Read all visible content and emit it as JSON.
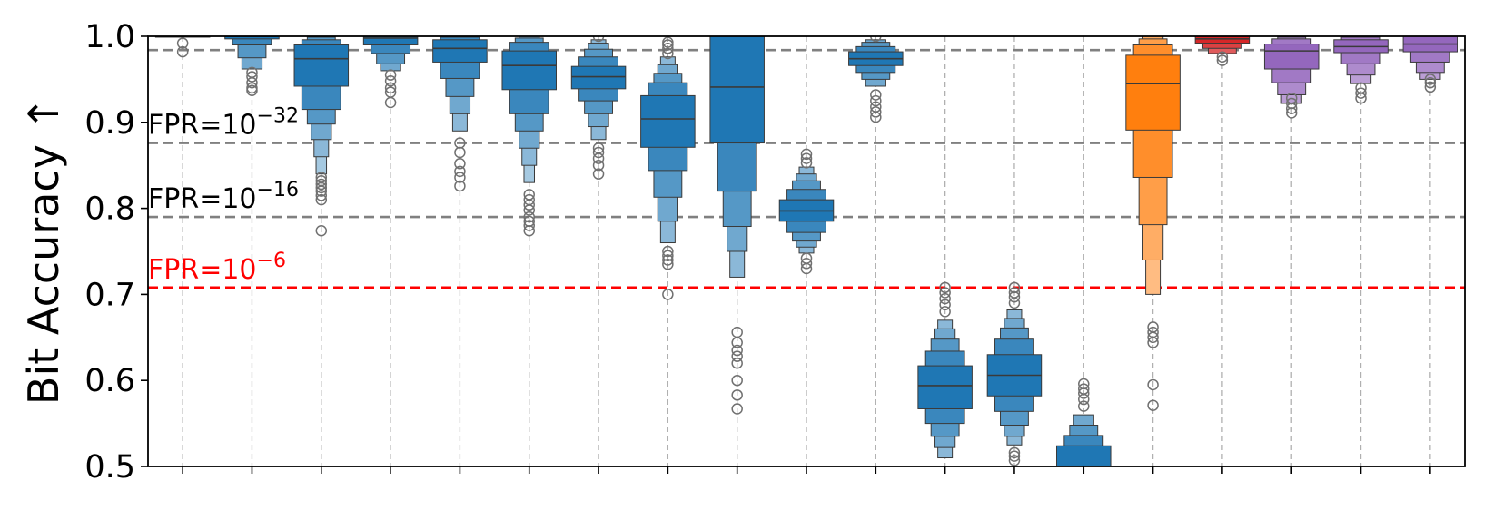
{
  "chart_data": {
    "type": "boxen",
    "xlabel": "",
    "ylabel": "Bit Accuracy ↑",
    "ylim": [
      0.5,
      1.0
    ],
    "yticks": [
      "0.5",
      "0.6",
      "0.7",
      "0.8",
      "0.9",
      "1.0"
    ],
    "grid": "dashed vertical lines at each category",
    "reference_lines": [
      {
        "label_base": "FPR=10",
        "exponent": "−32",
        "y": 0.984,
        "color": "#808080",
        "show_label": false
      },
      {
        "label_base": "FPR=10",
        "exponent": "−32",
        "y": 0.876,
        "color": "#808080",
        "show_label": true
      },
      {
        "label_base": "FPR=10",
        "exponent": "−16",
        "y": 0.79,
        "color": "#808080",
        "show_label": true
      },
      {
        "label_base": "FPR=10",
        "exponent": "−6",
        "y": 0.708,
        "color": "#ff0000",
        "show_label": true
      }
    ],
    "distributions": [
      {
        "index": 0,
        "median": 1.0,
        "color": "#1f77b4",
        "levels": [
          [
            1.0,
            1.0
          ]
        ],
        "outliers": [
          0.992,
          0.982
        ]
      },
      {
        "index": 1,
        "median": 1.0,
        "color": "#1f77b4",
        "levels": [
          [
            0.997,
            1.0
          ],
          [
            0.99,
            1.0
          ],
          [
            0.975,
            1.0
          ],
          [
            0.962,
            1.0
          ]
        ],
        "outliers": [
          0.958,
          0.953,
          0.946,
          0.94,
          0.937
        ]
      },
      {
        "index": 2,
        "median": 0.974,
        "color": "#1f77b4",
        "levels": [
          [
            0.942,
            0.99
          ],
          [
            0.915,
            0.996
          ],
          [
            0.898,
            0.999
          ],
          [
            0.88,
            1.0
          ],
          [
            0.86,
            1.0
          ],
          [
            0.84,
            1.0
          ]
        ],
        "outliers": [
          0.836,
          0.832,
          0.828,
          0.824,
          0.82,
          0.815,
          0.81,
          0.774
        ]
      },
      {
        "index": 3,
        "median": 0.998,
        "color": "#1f77b4",
        "levels": [
          [
            0.99,
            1.0
          ],
          [
            0.98,
            1.0
          ],
          [
            0.968,
            1.0
          ],
          [
            0.96,
            1.0
          ]
        ],
        "outliers": [
          0.955,
          0.948,
          0.94,
          0.935,
          0.923
        ]
      },
      {
        "index": 4,
        "median": 0.986,
        "color": "#1f77b4",
        "levels": [
          [
            0.97,
            0.996
          ],
          [
            0.951,
            0.999
          ],
          [
            0.93,
            1.0
          ],
          [
            0.91,
            1.0
          ],
          [
            0.89,
            1.0
          ]
        ],
        "outliers": [
          0.876,
          0.865,
          0.852,
          0.843,
          0.836,
          0.826
        ]
      },
      {
        "index": 5,
        "median": 0.966,
        "color": "#1f77b4",
        "levels": [
          [
            0.938,
            0.983
          ],
          [
            0.91,
            0.993
          ],
          [
            0.89,
            0.998
          ],
          [
            0.87,
            1.0
          ],
          [
            0.85,
            1.0
          ],
          [
            0.83,
            1.0
          ]
        ],
        "outliers": [
          0.816,
          0.81,
          0.804,
          0.798,
          0.79,
          0.785,
          0.78,
          0.774
        ]
      },
      {
        "index": 6,
        "median": 0.953,
        "color": "#1f77b4",
        "levels": [
          [
            0.939,
            0.965
          ],
          [
            0.925,
            0.976
          ],
          [
            0.91,
            0.985
          ],
          [
            0.895,
            0.992
          ],
          [
            0.88,
            0.996
          ]
        ],
        "outliers": [
          0.87,
          0.865,
          0.858,
          0.85,
          0.84,
          1.0
        ]
      },
      {
        "index": 7,
        "median": 0.904,
        "color": "#1f77b4",
        "levels": [
          [
            0.871,
            0.931
          ],
          [
            0.844,
            0.946
          ],
          [
            0.813,
            0.957
          ],
          [
            0.785,
            0.967
          ],
          [
            0.76,
            0.976
          ]
        ],
        "outliers": [
          0.75,
          0.745,
          0.74,
          0.735,
          0.7,
          0.98,
          0.986,
          0.99,
          0.993
        ]
      },
      {
        "index": 8,
        "median": 0.941,
        "color": "#1f77b4",
        "levels": [
          [
            0.876,
            1.0
          ],
          [
            0.82,
            1.0
          ],
          [
            0.779,
            1.0
          ],
          [
            0.75,
            1.0
          ],
          [
            0.72,
            1.0
          ]
        ],
        "outliers": [
          0.656,
          0.644,
          0.635,
          0.628,
          0.62,
          0.6,
          0.583,
          0.567
        ]
      },
      {
        "index": 9,
        "median": 0.797,
        "color": "#1f77b4",
        "levels": [
          [
            0.785,
            0.81
          ],
          [
            0.772,
            0.822
          ],
          [
            0.762,
            0.832
          ],
          [
            0.755,
            0.84
          ],
          [
            0.748,
            0.848
          ]
        ],
        "outliers": [
          0.742,
          0.736,
          0.73,
          0.853,
          0.858,
          0.863
        ]
      },
      {
        "index": 10,
        "median": 0.974,
        "color": "#1f77b4",
        "levels": [
          [
            0.966,
            0.982
          ],
          [
            0.958,
            0.988
          ],
          [
            0.95,
            0.993
          ],
          [
            0.942,
            0.996
          ]
        ],
        "outliers": [
          0.932,
          0.925,
          0.918,
          0.912,
          0.906,
          1.0
        ]
      },
      {
        "index": 11,
        "median": 0.594,
        "color": "#1f77b4",
        "levels": [
          [
            0.567,
            0.617
          ],
          [
            0.55,
            0.634
          ],
          [
            0.535,
            0.648
          ],
          [
            0.522,
            0.66
          ],
          [
            0.51,
            0.67
          ]
        ],
        "outliers": [
          0.68,
          0.688,
          0.695,
          0.702,
          0.708
        ]
      },
      {
        "index": 12,
        "median": 0.606,
        "color": "#1f77b4",
        "levels": [
          [
            0.582,
            0.63
          ],
          [
            0.564,
            0.648
          ],
          [
            0.548,
            0.661
          ],
          [
            0.535,
            0.672
          ],
          [
            0.525,
            0.682
          ]
        ],
        "outliers": [
          0.516,
          0.512,
          0.507,
          0.69,
          0.697,
          0.702,
          0.708
        ]
      },
      {
        "index": 13,
        "median": 0.49,
        "color": "#1f77b4",
        "levels": [
          [
            0.48,
            0.524
          ],
          [
            0.47,
            0.536
          ],
          [
            0.465,
            0.548
          ],
          [
            0.46,
            0.56
          ]
        ],
        "outliers": [
          0.57,
          0.578,
          0.585,
          0.59,
          0.596
        ]
      },
      {
        "index": 14,
        "median": 0.945,
        "color": "#ff7f0e",
        "levels": [
          [
            0.891,
            0.978
          ],
          [
            0.836,
            0.99
          ],
          [
            0.781,
            0.997
          ],
          [
            0.74,
            1.0
          ],
          [
            0.7,
            1.0
          ]
        ],
        "outliers": [
          0.662,
          0.656,
          0.65,
          0.644,
          0.595,
          0.571
        ]
      },
      {
        "index": 15,
        "median": 0.997,
        "color": "#d62728",
        "levels": [
          [
            0.992,
            1.0
          ],
          [
            0.986,
            1.0
          ],
          [
            0.98,
            1.0
          ]
        ],
        "outliers": [
          0.976,
          0.972
        ]
      },
      {
        "index": 16,
        "median": 0.983,
        "color": "#9467bd",
        "levels": [
          [
            0.962,
            0.991
          ],
          [
            0.946,
            0.997
          ],
          [
            0.932,
            0.999
          ],
          [
            0.922,
            1.0
          ]
        ],
        "outliers": [
          0.928,
          0.922,
          0.916,
          0.911
        ]
      },
      {
        "index": 17,
        "median": 0.988,
        "color": "#9467bd",
        "levels": [
          [
            0.981,
            0.996
          ],
          [
            0.968,
            0.999
          ],
          [
            0.955,
            1.0
          ],
          [
            0.945,
            1.0
          ]
        ],
        "outliers": [
          0.94,
          0.934,
          0.928
        ]
      },
      {
        "index": 18,
        "median": 0.991,
        "color": "#9467bd",
        "levels": [
          [
            0.982,
            1.0
          ],
          [
            0.97,
            1.0
          ],
          [
            0.958,
            1.0
          ],
          [
            0.95,
            1.0
          ]
        ],
        "outliers": [
          0.95,
          0.946,
          0.941
        ]
      }
    ]
  }
}
